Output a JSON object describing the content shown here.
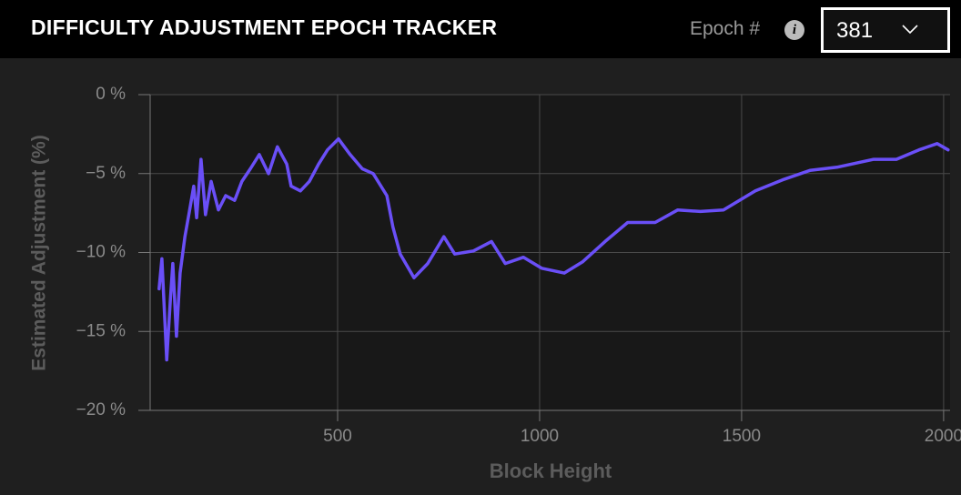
{
  "header": {
    "title": "DIFFICULTY ADJUSTMENT EPOCH TRACKER",
    "epoch_label": "Epoch #",
    "info_icon": "i",
    "epoch_value": "381"
  },
  "chart_data": {
    "type": "line",
    "xlabel": "Block Height",
    "ylabel": "Estimated Adjustment (%)",
    "xlim": [
      36,
      2016
    ],
    "ylim": [
      -20,
      0
    ],
    "xticks": [
      500,
      1000,
      1500,
      2000
    ],
    "yticks": [
      {
        "value": 0,
        "label": "0 %"
      },
      {
        "value": -5,
        "label": "−5 %"
      },
      {
        "value": -10,
        "label": "−10 %"
      },
      {
        "value": -15,
        "label": "−15 %"
      },
      {
        "value": -20,
        "label": "−20 %"
      }
    ],
    "grid": true,
    "color": "#6a4ff7",
    "x": [
      58,
      65,
      77,
      86,
      92,
      101,
      110,
      122,
      133,
      144,
      151,
      162,
      173,
      187,
      205,
      223,
      245,
      263,
      284,
      306,
      329,
      351,
      374,
      385,
      408,
      430,
      453,
      475,
      502,
      531,
      561,
      588,
      622,
      637,
      655,
      689,
      723,
      763,
      790,
      836,
      881,
      915,
      960,
      1005,
      1061,
      1106,
      1162,
      1218,
      1286,
      1342,
      1398,
      1455,
      1534,
      1601,
      1669,
      1736,
      1827,
      1883,
      1939,
      1984,
      2011
    ],
    "values": [
      -12.3,
      -10.4,
      -16.8,
      -13.0,
      -10.7,
      -15.3,
      -11.3,
      -9.0,
      -7.4,
      -5.8,
      -7.8,
      -4.1,
      -7.6,
      -5.5,
      -7.3,
      -6.4,
      -6.7,
      -5.5,
      -4.7,
      -3.8,
      -5.0,
      -3.3,
      -4.4,
      -5.8,
      -6.1,
      -5.5,
      -4.4,
      -3.5,
      -2.8,
      -3.8,
      -4.7,
      -5.0,
      -6.4,
      -8.4,
      -10.1,
      -11.6,
      -10.7,
      -9.0,
      -10.1,
      -9.9,
      -9.3,
      -10.7,
      -10.3,
      -11.0,
      -11.3,
      -10.6,
      -9.3,
      -8.1,
      -8.1,
      -7.3,
      -7.4,
      -7.3,
      -6.1,
      -5.4,
      -4.8,
      -4.6,
      -4.1,
      -4.1,
      -3.5,
      -3.1,
      -3.5
    ]
  }
}
